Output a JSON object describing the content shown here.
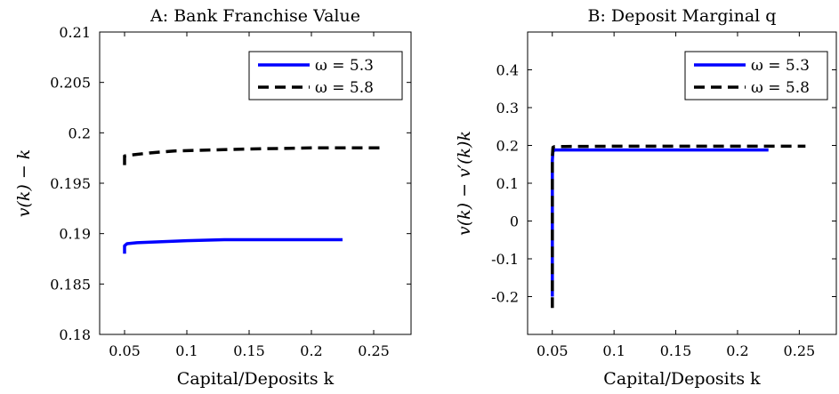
{
  "chart_data": [
    {
      "type": "line",
      "title": "A: Bank Franchise Value",
      "xlabel": "Capital/Deposits k",
      "ylabel": "v(k) − k",
      "xlim": [
        0.03,
        0.28
      ],
      "ylim": [
        0.18,
        0.21
      ],
      "xticks": [
        "0.05",
        "0.1",
        "0.15",
        "0.2",
        "0.25"
      ],
      "yticks": [
        "0.18",
        "0.185",
        "0.19",
        "0.195",
        "0.2",
        "0.205",
        "0.21"
      ],
      "grid": false,
      "legend_position": "top-right",
      "series": [
        {
          "name": "ω = 5.3",
          "color": "#0000ff",
          "style": "solid",
          "points": [
            [
              0.05,
              0.188
            ],
            [
              0.05,
              0.1888
            ],
            [
              0.052,
              0.189
            ],
            [
              0.06,
              0.1891
            ],
            [
              0.08,
              0.1892
            ],
            [
              0.1,
              0.1893
            ],
            [
              0.13,
              0.1894
            ],
            [
              0.16,
              0.1894
            ],
            [
              0.2,
              0.1894
            ],
            [
              0.225,
              0.1894
            ]
          ]
        },
        {
          "name": "ω = 5.8",
          "color": "#000000",
          "style": "dashed",
          "points": [
            [
              0.05,
              0.1968
            ],
            [
              0.05,
              0.1977
            ],
            [
              0.055,
              0.1978
            ],
            [
              0.07,
              0.198
            ],
            [
              0.09,
              0.1982
            ],
            [
              0.12,
              0.1983
            ],
            [
              0.15,
              0.1984
            ],
            [
              0.2,
              0.1985
            ],
            [
              0.255,
              0.1985
            ]
          ]
        }
      ]
    },
    {
      "type": "line",
      "title": "B: Deposit Marginal q",
      "xlabel": "Capital/Deposits k",
      "ylabel": "v(k) − v′(k)k",
      "xlim": [
        0.03,
        0.28
      ],
      "ylim": [
        -0.3,
        0.5
      ],
      "xticks": [
        "0.05",
        "0.1",
        "0.15",
        "0.2",
        "0.25"
      ],
      "yticks": [
        "-0.2",
        "-0.1",
        "0",
        "0.1",
        "0.2",
        "0.3",
        "0.4"
      ],
      "grid": false,
      "legend_position": "top-right",
      "series": [
        {
          "name": "ω = 5.3",
          "color": "#0000ff",
          "style": "solid",
          "points": [
            [
              0.05,
              -0.2
            ],
            [
              0.05,
              0.16
            ],
            [
              0.0505,
              0.185
            ],
            [
              0.052,
              0.188
            ],
            [
              0.1,
              0.188
            ],
            [
              0.15,
              0.188
            ],
            [
              0.2,
              0.188
            ],
            [
              0.225,
              0.188
            ]
          ]
        },
        {
          "name": "ω = 5.8",
          "color": "#000000",
          "style": "dashed",
          "points": [
            [
              0.05,
              -0.23
            ],
            [
              0.05,
              0.17
            ],
            [
              0.0505,
              0.195
            ],
            [
              0.052,
              0.197
            ],
            [
              0.1,
              0.198
            ],
            [
              0.15,
              0.198
            ],
            [
              0.2,
              0.198
            ],
            [
              0.255,
              0.198
            ]
          ]
        }
      ]
    }
  ]
}
